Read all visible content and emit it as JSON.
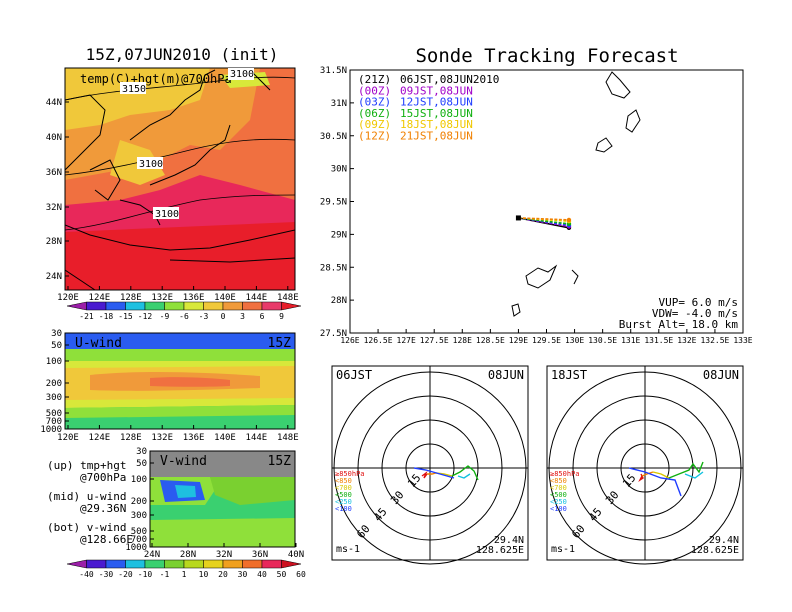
{
  "left": {
    "title": "15Z,07JUN2010 (init)",
    "map": {
      "label": "temp(C)+hgt(m)@700hPa",
      "lon_ticks": [
        "120E",
        "124E",
        "128E",
        "132E",
        "136E",
        "140E",
        "144E",
        "148E"
      ],
      "lat_ticks": [
        "44N",
        "40N",
        "36N",
        "32N",
        "28N",
        "24N"
      ],
      "contours": [
        "3150",
        "3100",
        "3100",
        "3100"
      ],
      "colorbar": [
        "-21",
        "-18",
        "-15",
        "-12",
        "-9",
        "-6",
        "-3",
        "0",
        "3",
        "6",
        "9"
      ],
      "colors": [
        "#9b1ea8",
        "#4a1ad0",
        "#2a5cf0",
        "#1ec0e0",
        "#3ad070",
        "#8fe03a",
        "#d8e83a",
        "#f0c83a",
        "#f09a3a",
        "#f07040",
        "#e83a6a",
        "#e81e2a"
      ]
    },
    "uwind": {
      "label": "U-wind",
      "time": "15Z",
      "p_ticks": [
        "30",
        "50",
        "100",
        "200",
        "300",
        "500",
        "700",
        "1000"
      ],
      "lon_ticks": [
        "120E",
        "124E",
        "128E",
        "132E",
        "136E",
        "140E",
        "144E",
        "148E"
      ]
    },
    "vwind": {
      "label": "V-wind",
      "time": "15Z",
      "p_ticks": [
        "30",
        "50",
        "100",
        "200",
        "300",
        "500",
        "700",
        "1000"
      ],
      "lat_ticks": [
        "24N",
        "28N",
        "32N",
        "36N",
        "40N"
      ],
      "colorbar": [
        "-40",
        "-30",
        "-20",
        "-10",
        "-1",
        "1",
        "10",
        "20",
        "30",
        "40",
        "50",
        "60"
      ],
      "colors": [
        "#9b1ea8",
        "#4a1ad0",
        "#2a5cf0",
        "#1ec0e0",
        "#3ad070",
        "#7ad030",
        "#b8d81e",
        "#e6d21e",
        "#f0a01e",
        "#f06e2a",
        "#e8285a",
        "#cc1020"
      ]
    },
    "legend": {
      "up": "(up) tmp+hgt",
      "up2": "@700hPa",
      "mid": "(mid) u-wind",
      "mid2": "@29.36N",
      "bot": "(bot) v-wind",
      "bot2": "@128.66E"
    }
  },
  "right": {
    "title": "Sonde Tracking Forecast",
    "lat_ticks": [
      "31.5N",
      "31N",
      "30.5N",
      "30N",
      "29.5N",
      "29N",
      "28.5N",
      "28N",
      "27.5N"
    ],
    "lon_ticks": [
      "126E",
      "126.5E",
      "127E",
      "127.5E",
      "128E",
      "128.5E",
      "129E",
      "129.5E",
      "130E",
      "130.5E",
      "131E",
      "131.5E",
      "132E",
      "132.5E",
      "133E"
    ],
    "legend": [
      {
        "code": "(21Z)",
        "time": "06JST,08JUN2010",
        "color": "#000000"
      },
      {
        "code": "(00Z)",
        "time": "09JST,08JUN",
        "color": "#a000c8"
      },
      {
        "code": "(03Z)",
        "time": "12JST,08JUN",
        "color": "#1e3cff"
      },
      {
        "code": "(06Z)",
        "time": "15JST,08JUN",
        "color": "#10b010"
      },
      {
        "code": "(09Z)",
        "time": "18JST,08JUN",
        "color": "#f0c800"
      },
      {
        "code": "(12Z)",
        "time": "21JST,08JUN",
        "color": "#f08000"
      }
    ],
    "params": {
      "vup": "VUP=  6.0  m/s",
      "vdw": "VDW= -4.0  m/s",
      "burst": "Burst Alt= 18.0  km"
    }
  },
  "hodo1": {
    "title_left": "06JST",
    "title_right": "08JUN",
    "rings": [
      "15",
      "30",
      "45",
      "60"
    ],
    "pressure": [
      "≥850hPa",
      "<850",
      "<700",
      "<500",
      "<250",
      "<100"
    ],
    "pressure_colors": [
      "#e01010",
      "#f08000",
      "#d8c800",
      "#10b010",
      "#10c0e0",
      "#1e3cff"
    ],
    "unit": "ms-1",
    "lat": "29.4N",
    "lon": "128.625E"
  },
  "hodo2": {
    "title_left": "18JST",
    "title_right": "08JUN",
    "rings": [
      "15",
      "30",
      "45",
      "60"
    ],
    "pressure": [
      "≥850hPa",
      "<850",
      "<700",
      "<500",
      "<250",
      "<100"
    ],
    "pressure_colors": [
      "#e01010",
      "#f08000",
      "#d8c800",
      "#10b010",
      "#10c0e0",
      "#1e3cff"
    ],
    "unit": "ms-1",
    "lat": "29.4N",
    "lon": "128.625E"
  },
  "chart_data": [
    {
      "type": "heatmap",
      "title": "15Z,07JUN2010 (init)",
      "label": "temp(C)+hgt(m)@700hPa",
      "xlabel": "",
      "ylabel": "",
      "xlim": [
        120,
        150
      ],
      "ylim": [
        22,
        48
      ]
    },
    {
      "type": "heatmap",
      "label": "U-wind",
      "xlabel": "",
      "ylabel": "",
      "xlim": [
        120,
        150
      ],
      "ylim": [
        1000,
        30
      ]
    },
    {
      "type": "heatmap",
      "label": "V-wind",
      "xlabel": "",
      "ylabel": "",
      "xlim": [
        24,
        40
      ],
      "ylim": [
        1000,
        30
      ]
    },
    {
      "type": "line",
      "title": "Sonde Tracking Forecast",
      "xlim": [
        126,
        133
      ],
      "ylim": [
        27.5,
        31.5
      ],
      "series": [
        {
          "name": "(21Z) 06JST,08JUN2010",
          "x": [
            129.0,
            129.9
          ],
          "y": [
            29.25,
            29.1
          ]
        },
        {
          "name": "(00Z) 09JST,08JUN",
          "x": [
            129.0,
            129.9
          ],
          "y": [
            29.25,
            29.12
          ]
        },
        {
          "name": "(03Z) 12JST,08JUN",
          "x": [
            129.0,
            129.9
          ],
          "y": [
            29.25,
            29.14
          ]
        },
        {
          "name": "(06Z) 15JST,08JUN",
          "x": [
            129.0,
            129.9
          ],
          "y": [
            29.25,
            29.16
          ]
        },
        {
          "name": "(09Z) 18JST,08JUN",
          "x": [
            129.0,
            129.9
          ],
          "y": [
            29.25,
            29.2
          ]
        },
        {
          "name": "(12Z) 21JST,08JUN",
          "x": [
            129.0,
            129.9
          ],
          "y": [
            29.25,
            29.22
          ]
        }
      ]
    },
    {
      "type": "line",
      "title": "06JST 08JUN",
      "rings": [
        15,
        30,
        45,
        60
      ]
    },
    {
      "type": "line",
      "title": "18JST 08JUN",
      "rings": [
        15,
        30,
        45,
        60
      ]
    }
  ]
}
